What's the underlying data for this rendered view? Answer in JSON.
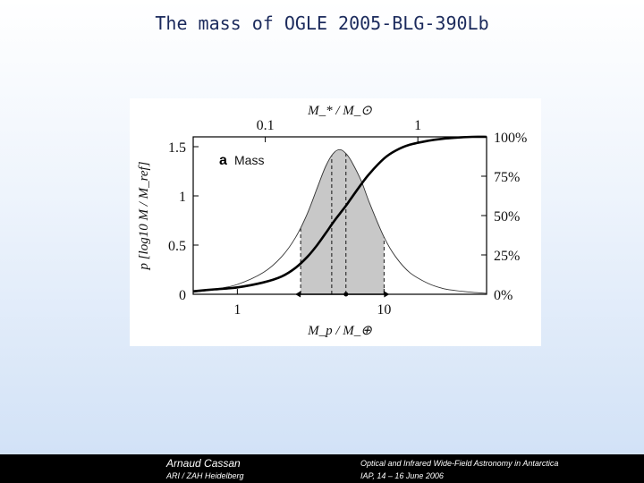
{
  "slide": {
    "title": "The mass of OGLE 2005-BLG-390Lb"
  },
  "footer": {
    "author": "Arnaud Cassan",
    "affiliation": "ARI / ZAH Heidelberg",
    "conference": "Optical and Infrared Wide-Field Astronomy in Antarctica",
    "venue": "IAP,  14 – 16 June 2006"
  },
  "chart_data": {
    "type": "line",
    "panel_label": "a",
    "panel_title": "Mass",
    "xlabel": "M_p / M_⊕",
    "x_top_label": "M_* / M_⊙",
    "ylabel_left": "p [log10 M / M_ref]",
    "x_scale": "log",
    "xlim": [
      0.5,
      50
    ],
    "ylim": [
      0,
      1.6
    ],
    "x_ticks": [
      {
        "value": 1,
        "label": "1"
      },
      {
        "value": 10,
        "label": "10"
      }
    ],
    "x_top_ticks": [
      {
        "value": 1.55,
        "label": "0.1"
      },
      {
        "value": 17,
        "label": "1"
      }
    ],
    "y_ticks": [
      {
        "value": 0,
        "label": "0"
      },
      {
        "value": 0.5,
        "label": "0.5"
      },
      {
        "value": 1,
        "label": "1"
      },
      {
        "value": 1.5,
        "label": "1.5"
      }
    ],
    "y_right_ticks": [
      {
        "value": 0,
        "label": "0%"
      },
      {
        "value": 0.4,
        "label": "25%"
      },
      {
        "value": 0.8,
        "label": "50%"
      },
      {
        "value": 1.2,
        "label": "75%"
      },
      {
        "value": 1.6,
        "label": "100%"
      }
    ],
    "series": [
      {
        "name": "probability density",
        "x": [
          0.5,
          0.7,
          1,
          1.5,
          2,
          2.5,
          3,
          3.5,
          4,
          4.5,
          5,
          5.5,
          6,
          7,
          8,
          10,
          12,
          15,
          20,
          25,
          30,
          40,
          50
        ],
        "y": [
          0.02,
          0.05,
          0.1,
          0.22,
          0.38,
          0.58,
          0.82,
          1.08,
          1.3,
          1.43,
          1.47,
          1.43,
          1.35,
          1.15,
          0.92,
          0.58,
          0.38,
          0.22,
          0.11,
          0.06,
          0.04,
          0.02,
          0.01
        ]
      },
      {
        "name": "cumulative probability",
        "x": [
          0.5,
          0.7,
          1,
          1.5,
          2,
          2.5,
          3,
          3.5,
          4,
          4.5,
          5,
          5.5,
          6,
          7,
          8,
          10,
          12,
          15,
          20,
          25,
          30,
          40,
          50
        ],
        "y": [
          0.03,
          0.05,
          0.07,
          0.12,
          0.18,
          0.27,
          0.38,
          0.5,
          0.62,
          0.73,
          0.82,
          0.9,
          0.98,
          1.12,
          1.23,
          1.38,
          1.46,
          1.52,
          1.56,
          1.58,
          1.59,
          1.6,
          1.6
        ]
      }
    ],
    "confidence_interval": [
      2.7,
      10.0
    ],
    "median": 5.5,
    "marked_lines": [
      2.7,
      4.4,
      5.5,
      10.0
    ]
  }
}
